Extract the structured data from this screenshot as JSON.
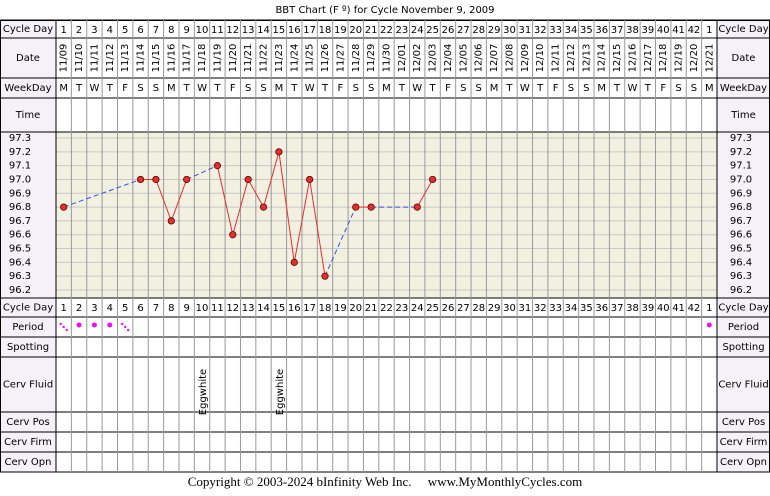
{
  "chart_data": {
    "type": "line",
    "title": "BBT Chart (F º) for Cycle November 9, 2009",
    "row_labels": {
      "cycle_day": "Cycle Day",
      "date": "Date",
      "weekday": "WeekDay",
      "time": "Time",
      "period": "Period",
      "spotting": "Spotting",
      "cerv_fluid": "Cerv Fluid",
      "cerv_pos": "Cerv Pos",
      "cerv_firm": "Cerv Firm",
      "cerv_opn": "Cerv Opn"
    },
    "categories": [
      1,
      2,
      3,
      4,
      5,
      6,
      7,
      8,
      9,
      10,
      11,
      12,
      13,
      14,
      15,
      16,
      17,
      18,
      19,
      20,
      21,
      22,
      23,
      24,
      25,
      26,
      27,
      28,
      29,
      30,
      31,
      32,
      33,
      34,
      35,
      36,
      37,
      38,
      39,
      40,
      41,
      42,
      1
    ],
    "dates": [
      "11/09",
      "11/10",
      "11/11",
      "11/12",
      "11/13",
      "11/14",
      "11/15",
      "11/16",
      "11/17",
      "11/18",
      "11/19",
      "11/20",
      "11/21",
      "11/22",
      "11/23",
      "11/24",
      "11/25",
      "11/26",
      "11/27",
      "11/28",
      "11/29",
      "11/30",
      "12/01",
      "12/02",
      "12/03",
      "12/04",
      "12/05",
      "12/06",
      "12/07",
      "12/08",
      "12/09",
      "12/10",
      "12/11",
      "12/12",
      "12/13",
      "12/14",
      "12/15",
      "12/16",
      "12/17",
      "12/18",
      "12/19",
      "12/20",
      "12/21"
    ],
    "weekdays": [
      "M",
      "T",
      "W",
      "T",
      "F",
      "S",
      "S",
      "M",
      "T",
      "W",
      "T",
      "F",
      "S",
      "S",
      "M",
      "T",
      "W",
      "T",
      "F",
      "S",
      "S",
      "M",
      "T",
      "W",
      "T",
      "F",
      "S",
      "S",
      "M",
      "T",
      "W",
      "T",
      "F",
      "S",
      "S",
      "M",
      "T",
      "W",
      "T",
      "F",
      "S",
      "S",
      "M"
    ],
    "series": [
      {
        "color": "#e03030",
        "values": [
          96.8,
          null,
          null,
          null,
          null,
          97.0,
          97.0,
          96.7,
          97.0,
          null,
          97.1,
          96.6,
          97.0,
          96.8,
          97.2,
          96.4,
          97.0,
          96.3,
          null,
          96.8,
          96.8,
          null,
          null,
          96.8,
          97.0,
          null,
          null,
          null,
          null,
          null,
          null,
          null,
          null,
          null,
          null,
          null,
          null,
          null,
          null,
          null,
          null,
          null,
          null
        ]
      }
    ],
    "ylim": [
      96.2,
      97.3
    ],
    "yticks": [
      {
        "value": 97.3,
        "label": "97.3"
      },
      {
        "value": 97.2,
        "label": "97.2"
      },
      {
        "value": 97.1,
        "label": "97.1"
      },
      {
        "value": 97,
        "label": "97.0"
      },
      {
        "value": 96.9,
        "label": "96.9"
      },
      {
        "value": 96.8,
        "label": "96.8"
      },
      {
        "value": 96.7,
        "label": "96.7"
      },
      {
        "value": 96.6,
        "label": "96.6"
      },
      {
        "value": 96.5,
        "label": "96.5"
      },
      {
        "value": 96.4,
        "label": "96.4"
      },
      {
        "value": 96.3,
        "label": "96.3"
      },
      {
        "value": 96.2,
        "label": "96.2"
      }
    ],
    "grid": true,
    "period": [
      "light",
      "medium",
      "medium",
      "medium",
      "light",
      null,
      null,
      null,
      null,
      null,
      null,
      null,
      null,
      null,
      null,
      null,
      null,
      null,
      null,
      null,
      null,
      null,
      null,
      null,
      null,
      null,
      null,
      null,
      null,
      null,
      null,
      null,
      null,
      null,
      null,
      null,
      null,
      null,
      null,
      null,
      null,
      null,
      "medium"
    ],
    "cerv_fluid": [
      null,
      null,
      null,
      null,
      null,
      null,
      null,
      null,
      null,
      "Eggwhite",
      null,
      null,
      null,
      null,
      "Eggwhite",
      null,
      null,
      null,
      null,
      null,
      null,
      null,
      null,
      null,
      null,
      null,
      null,
      null,
      null,
      null,
      null,
      null,
      null,
      null,
      null,
      null,
      null,
      null,
      null,
      null,
      null,
      null,
      null
    ],
    "footer": "Copyright © 2003-2024 bInfinity Web Inc.     www.MyMonthlyCycles.com"
  }
}
